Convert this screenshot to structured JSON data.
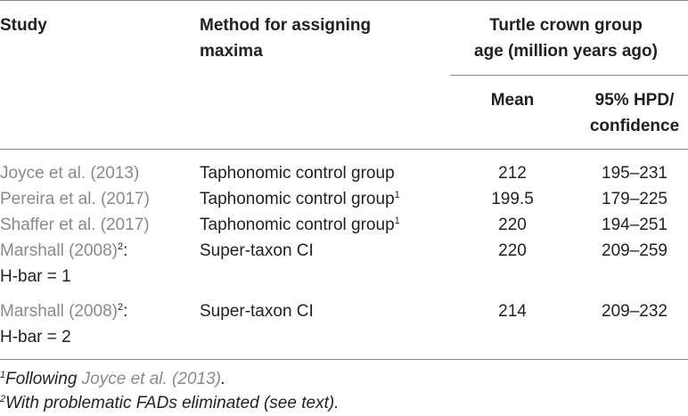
{
  "table": {
    "headers": {
      "study": "Study",
      "method_line1": "Method for assigning",
      "method_line2": "maxima",
      "group_line1": "Turtle crown group",
      "group_line2": "age (million years ago)",
      "mean": "Mean",
      "hpd_line1": "95% HPD/",
      "hpd_line2": "confidence"
    },
    "rows": [
      {
        "study": "Joyce et al. (2013)",
        "study_sup": "",
        "study_line2": "",
        "method": "Taphonomic control group",
        "method_sup": "",
        "mean": "212",
        "hpd": "195–231"
      },
      {
        "study": "Pereira et al. (2017)",
        "study_sup": "",
        "study_line2": "",
        "method": "Taphonomic control group",
        "method_sup": "1",
        "mean": "199.5",
        "hpd": "179–225"
      },
      {
        "study": "Shaffer et al. (2017)",
        "study_sup": "",
        "study_line2": "",
        "method": "Taphonomic control group",
        "method_sup": "1",
        "mean": "220",
        "hpd": "194–251"
      },
      {
        "study": "Marshall (2008)",
        "study_sup": "2",
        "study_suffix": ":",
        "study_line2": "H-bar = 1",
        "method": "Super-taxon CI",
        "method_sup": "",
        "mean": "220",
        "hpd": "209–259"
      },
      {
        "study": "Marshall (2008)",
        "study_sup": "2",
        "study_suffix": ":",
        "study_line2": "H-bar = 2",
        "method": "Super-taxon CI",
        "method_sup": "",
        "mean": "214",
        "hpd": "209–232"
      }
    ]
  },
  "footnotes": {
    "f1_mark": "1",
    "f1_text": "Following ",
    "f1_link": "Joyce et al. (2013)",
    "f1_end": ".",
    "f2_mark": "2",
    "f2_text": "With problematic FADs eliminated (see text)."
  },
  "colors": {
    "text": "#231f20",
    "link": "#8a8a8a",
    "rule": "#8c8c8c"
  }
}
